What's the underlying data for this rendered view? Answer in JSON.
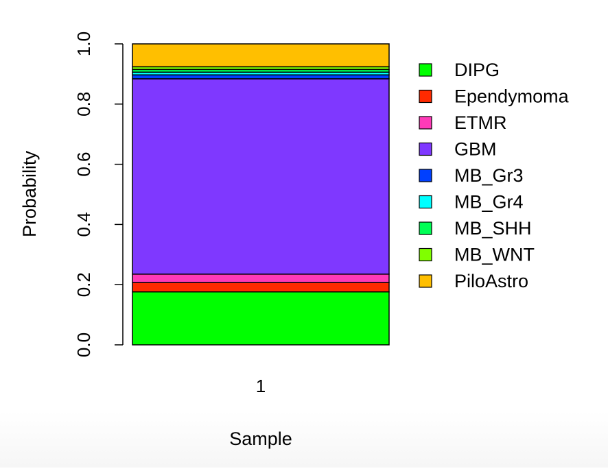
{
  "chart_data": {
    "type": "bar",
    "stacked": true,
    "categories": [
      "1"
    ],
    "xlabel": "Sample",
    "ylabel": "Probability",
    "ylim": [
      0,
      1
    ],
    "yticks": [
      "0.0",
      "0.2",
      "0.4",
      "0.6",
      "0.8",
      "1.0"
    ],
    "legend_position": "right",
    "series": [
      {
        "name": "DIPG",
        "values": [
          0.176
        ],
        "color": "#00ff00"
      },
      {
        "name": "Ependymoma",
        "values": [
          0.031
        ],
        "color": "#ff2a00"
      },
      {
        "name": "ETMR",
        "values": [
          0.028
        ],
        "color": "#ff3ab8"
      },
      {
        "name": "GBM",
        "values": [
          0.649
        ],
        "color": "#7f38ff"
      },
      {
        "name": "MB_Gr3",
        "values": [
          0.013
        ],
        "color": "#0040ff"
      },
      {
        "name": "MB_Gr4",
        "values": [
          0.009
        ],
        "color": "#00ffff"
      },
      {
        "name": "MB_SHH",
        "values": [
          0.009
        ],
        "color": "#00ff55"
      },
      {
        "name": "MB_WNT",
        "values": [
          0.009
        ],
        "color": "#80ff00"
      },
      {
        "name": "PiloAstro",
        "values": [
          0.076
        ],
        "color": "#ffbf00"
      }
    ]
  }
}
